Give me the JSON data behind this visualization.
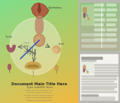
{
  "title": "Document Main Title Here",
  "subtitle": "Type subtitle here",
  "body_text": "Lorem ipsum dolor sit amet, consectetuer adipiscing elit, sed diam nonummy nibh euismod tincidunt ut laoreet dolore magna aliquam erat volutpat. Ut wisi enim ad minim veniam, quis nostrud exerci tation ullamcorper suscipit lobortis nisl ut aliquip ex ea commodo consequat.",
  "figsize": [
    1.68,
    1.45
  ],
  "dpi": 100,
  "bg_colors": [
    "#8dc87a",
    "#b8d898",
    "#e8dfc0",
    "#f0d8b0"
  ],
  "hypothalamus_color": "#b06050",
  "hypothalamus_top_color": "#903028",
  "pituitary_color": "#c89868",
  "thyroid_color": "#904858",
  "adrenal_color": "#c8a050",
  "gonad_color": "#d4a870",
  "nerve_color": "#3050b0",
  "arrow_color": "#404040",
  "label_color": "#404040",
  "right_bg": "#c8c8c0",
  "page_bg": "#f0eeea",
  "text_line_color": "#b8b8b0",
  "green_page_bg1": "#a0c890",
  "green_page_bg2": "#c0d8a8"
}
